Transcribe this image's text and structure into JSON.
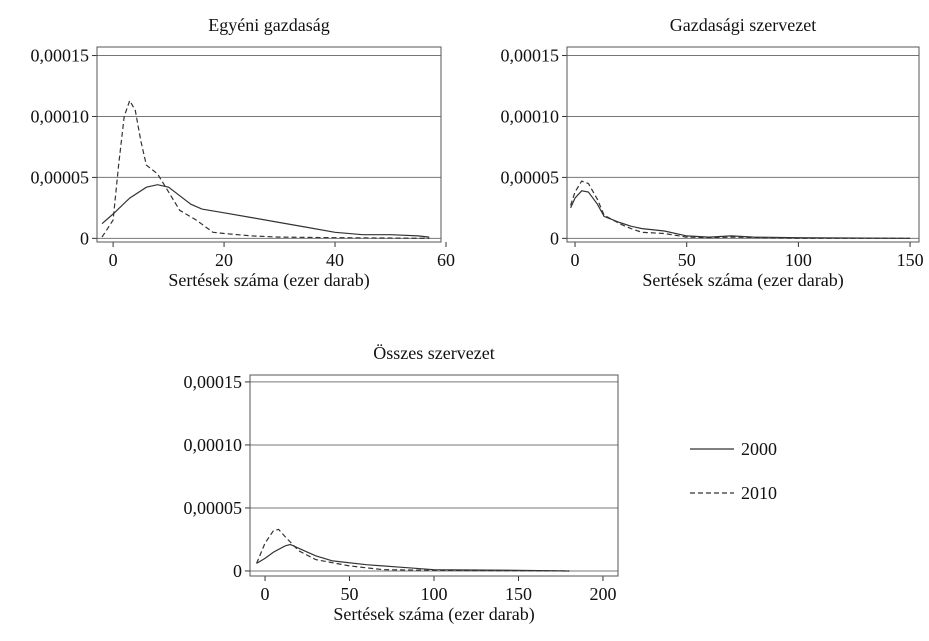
{
  "chart_data": [
    {
      "type": "line",
      "title": "Egyéni gazdaság",
      "xlabel": "Sertések száma (ezer darab)",
      "xlim": [
        -2.9,
        59.1
      ],
      "xticks": [
        0,
        20,
        40,
        60
      ],
      "ylim": [
        -3e-06,
        0.000157
      ],
      "yticks": [
        0,
        {
          "value": 5e-05,
          "label": "0,00005"
        },
        {
          "value": 0.0001,
          "label": "0,00010"
        },
        {
          "value": 0.00015,
          "label": "0,00015"
        }
      ],
      "grid": true,
      "series": [
        {
          "color": "#333",
          "dash": false,
          "x": [
            -2,
            0,
            3,
            6,
            8,
            10,
            12,
            14,
            16,
            20,
            25,
            30,
            35,
            40,
            45,
            50,
            55,
            57
          ],
          "values": [
            1.2e-05,
            2e-05,
            3.3e-05,
            4.2e-05,
            4.4e-05,
            4.2e-05,
            3.5e-05,
            2.8e-05,
            2.4e-05,
            2.1e-05,
            1.7e-05,
            1.3e-05,
            9e-06,
            5e-06,
            3e-06,
            3e-06,
            2e-06,
            1e-06
          ]
        },
        {
          "color": "#333",
          "dash": true,
          "x": [
            -2,
            0,
            1,
            2,
            3,
            4,
            5,
            6,
            8,
            10,
            12,
            15,
            18,
            20,
            25,
            30,
            40,
            57
          ],
          "values": [
            1e-06,
            1.5e-05,
            6e-05,
            0.0001,
            0.000113,
            0.000105,
            8e-05,
            6e-05,
            5.3e-05,
            3.8e-05,
            2.3e-05,
            1.5e-05,
            5e-06,
            4e-06,
            2e-06,
            1e-06,
            5e-07,
            0
          ]
        }
      ]
    },
    {
      "type": "line",
      "title": "Gazdasági szervezet",
      "xlabel": "Sertések száma (ezer darab)",
      "xlim": [
        -3.6,
        154
      ],
      "xticks": [
        0,
        50,
        100,
        150
      ],
      "ylim": [
        -3e-06,
        0.000157
      ],
      "yticks": [
        0,
        {
          "value": 5e-05,
          "label": "0,00005"
        },
        {
          "value": 0.0001,
          "label": "0,00010"
        },
        {
          "value": 0.00015,
          "label": "0,00015"
        }
      ],
      "grid": true,
      "series": [
        {
          "color": "#333",
          "dash": false,
          "x": [
            -2,
            0,
            3,
            6,
            10,
            13,
            20,
            25,
            30,
            40,
            50,
            60,
            70,
            80,
            100,
            150
          ],
          "values": [
            2.5e-05,
            3.3e-05,
            3.9e-05,
            3.8e-05,
            2.8e-05,
            1.8e-05,
            1.3e-05,
            1e-05,
            8e-06,
            6e-06,
            2e-06,
            1e-06,
            2e-06,
            1e-06,
            5e-07,
            0
          ]
        },
        {
          "color": "#333",
          "dash": true,
          "x": [
            -2,
            0,
            3,
            6,
            10,
            13,
            20,
            25,
            30,
            40,
            50,
            60,
            70,
            100,
            150
          ],
          "values": [
            2.7e-05,
            3.8e-05,
            4.7e-05,
            4.5e-05,
            3.2e-05,
            1.9e-05,
            1.2e-05,
            8e-06,
            5e-06,
            4e-06,
            1e-06,
            5e-07,
            1e-06,
            0,
            0
          ]
        }
      ]
    },
    {
      "type": "line",
      "title": "Összes szervezet",
      "xlabel": "Sertések száma (ezer darab)",
      "xlim": [
        -8.9,
        208.9
      ],
      "xticks": [
        0,
        50,
        100,
        150,
        200
      ],
      "ylim": [
        -4e-06,
        0.0001555
      ],
      "yticks": [
        0,
        {
          "value": 5e-05,
          "label": "0,00005"
        },
        {
          "value": 0.0001,
          "label": "0,00010"
        },
        {
          "value": 0.00015,
          "label": "0,00015"
        }
      ],
      "grid": true,
      "series": [
        {
          "name": "2000",
          "color": "#333",
          "dash": false,
          "x": [
            -5,
            0,
            5,
            12,
            15,
            20,
            30,
            40,
            60,
            80,
            100,
            150,
            180
          ],
          "values": [
            6e-06,
            1e-05,
            1.5e-05,
            2e-05,
            2.1e-05,
            1.8e-05,
            1.2e-05,
            8e-06,
            5e-06,
            3e-06,
            1e-06,
            5e-07,
            0
          ]
        },
        {
          "name": "2010",
          "color": "#333",
          "dash": true,
          "x": [
            -5,
            0,
            5,
            8,
            12,
            20,
            30,
            50,
            70,
            100,
            180
          ],
          "values": [
            6e-06,
            2.2e-05,
            3.2e-05,
            3.3e-05,
            2.7e-05,
            1.6e-05,
            9e-06,
            4e-06,
            1e-06,
            5e-07,
            0
          ]
        }
      ]
    }
  ]
}
